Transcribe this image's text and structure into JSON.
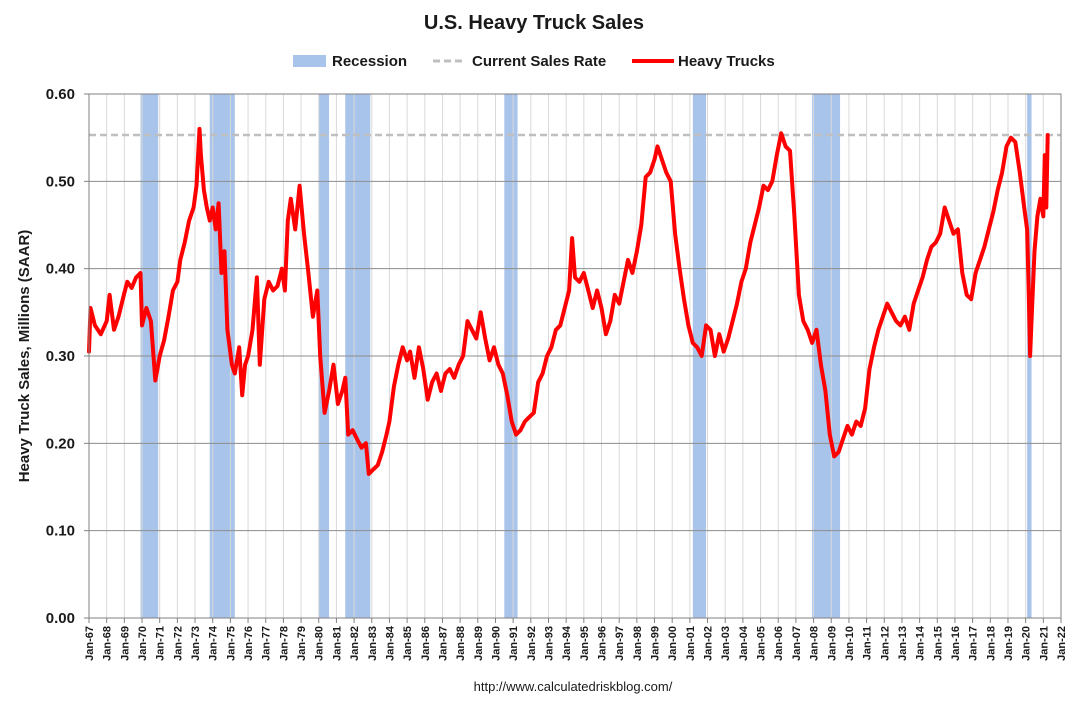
{
  "chart_data": {
    "type": "line",
    "title": "U.S. Heavy Truck Sales",
    "ylabel": "Heavy Truck Sales, Millions (SAAR)",
    "xlabel": "",
    "source": "http://www.calculatedriskblog.com/",
    "ylim": [
      0,
      0.6
    ],
    "yticks": [
      "0.00",
      "0.10",
      "0.20",
      "0.30",
      "0.40",
      "0.50",
      "0.60"
    ],
    "xlim": [
      "1967-01",
      "2022-01"
    ],
    "xticks": [
      "Jan-67",
      "Jan-68",
      "Jan-69",
      "Jan-70",
      "Jan-71",
      "Jan-72",
      "Jan-73",
      "Jan-74",
      "Jan-75",
      "Jan-76",
      "Jan-77",
      "Jan-78",
      "Jan-79",
      "Jan-80",
      "Jan-81",
      "Jan-82",
      "Jan-83",
      "Jan-84",
      "Jan-85",
      "Jan-86",
      "Jan-87",
      "Jan-88",
      "Jan-89",
      "Jan-90",
      "Jan-91",
      "Jan-92",
      "Jan-93",
      "Jan-94",
      "Jan-95",
      "Jan-96",
      "Jan-97",
      "Jan-98",
      "Jan-99",
      "Jan-00",
      "Jan-01",
      "Jan-02",
      "Jan-03",
      "Jan-04",
      "Jan-05",
      "Jan-06",
      "Jan-07",
      "Jan-08",
      "Jan-09",
      "Jan-10",
      "Jan-11",
      "Jan-12",
      "Jan-13",
      "Jan-14",
      "Jan-15",
      "Jan-16",
      "Jan-17",
      "Jan-18",
      "Jan-19",
      "Jan-20",
      "Jan-21",
      "Jan-22"
    ],
    "grid": true,
    "legend": {
      "position": "top",
      "entries": [
        {
          "name": "Recession",
          "color": "#a9c4eb"
        },
        {
          "name": "Current Sales Rate",
          "color": "#bfbfbf"
        },
        {
          "name": "Heavy Trucks",
          "color": "#ff0000"
        }
      ]
    },
    "current_sales_rate": 0.553,
    "recessions": [
      {
        "start": "1969-12",
        "end": "1970-11"
      },
      {
        "start": "1973-11",
        "end": "1975-03"
      },
      {
        "start": "1980-01",
        "end": "1980-07"
      },
      {
        "start": "1981-07",
        "end": "1982-11"
      },
      {
        "start": "1990-07",
        "end": "1991-03"
      },
      {
        "start": "2001-03",
        "end": "2001-11"
      },
      {
        "start": "2007-12",
        "end": "2009-06"
      },
      {
        "start": "2020-02",
        "end": "2020-04"
      }
    ],
    "series": [
      {
        "name": "Heavy Trucks",
        "color": "#ff0000",
        "points": [
          [
            "1967-01",
            0.305
          ],
          [
            "1967-02",
            0.355
          ],
          [
            "1967-05",
            0.335
          ],
          [
            "1967-09",
            0.325
          ],
          [
            "1968-01",
            0.34
          ],
          [
            "1968-03",
            0.37
          ],
          [
            "1968-06",
            0.33
          ],
          [
            "1968-09",
            0.345
          ],
          [
            "1969-01",
            0.372
          ],
          [
            "1969-03",
            0.385
          ],
          [
            "1969-06",
            0.378
          ],
          [
            "1969-09",
            0.39
          ],
          [
            "1969-12",
            0.395
          ],
          [
            "1970-01",
            0.335
          ],
          [
            "1970-04",
            0.355
          ],
          [
            "1970-07",
            0.34
          ],
          [
            "1970-10",
            0.272
          ],
          [
            "1971-01",
            0.3
          ],
          [
            "1971-04",
            0.318
          ],
          [
            "1971-07",
            0.345
          ],
          [
            "1971-10",
            0.375
          ],
          [
            "1972-01",
            0.385
          ],
          [
            "1972-03",
            0.41
          ],
          [
            "1972-06",
            0.43
          ],
          [
            "1972-09",
            0.455
          ],
          [
            "1972-12",
            0.47
          ],
          [
            "1973-02",
            0.495
          ],
          [
            "1973-04",
            0.56
          ],
          [
            "1973-05",
            0.53
          ],
          [
            "1973-07",
            0.49
          ],
          [
            "1973-09",
            0.47
          ],
          [
            "1973-11",
            0.455
          ],
          [
            "1974-01",
            0.47
          ],
          [
            "1974-03",
            0.445
          ],
          [
            "1974-05",
            0.475
          ],
          [
            "1974-07",
            0.395
          ],
          [
            "1974-09",
            0.42
          ],
          [
            "1974-11",
            0.33
          ],
          [
            "1975-02",
            0.29
          ],
          [
            "1975-04",
            0.28
          ],
          [
            "1975-07",
            0.31
          ],
          [
            "1975-09",
            0.255
          ],
          [
            "1975-11",
            0.29
          ],
          [
            "1976-01",
            0.3
          ],
          [
            "1976-04",
            0.33
          ],
          [
            "1976-07",
            0.39
          ],
          [
            "1976-09",
            0.29
          ],
          [
            "1976-12",
            0.365
          ],
          [
            "1977-03",
            0.385
          ],
          [
            "1977-06",
            0.375
          ],
          [
            "1977-09",
            0.38
          ],
          [
            "1977-12",
            0.4
          ],
          [
            "1978-02",
            0.375
          ],
          [
            "1978-04",
            0.455
          ],
          [
            "1978-06",
            0.48
          ],
          [
            "1978-09",
            0.445
          ],
          [
            "1978-12",
            0.495
          ],
          [
            "1979-03",
            0.44
          ],
          [
            "1979-06",
            0.395
          ],
          [
            "1979-09",
            0.345
          ],
          [
            "1979-12",
            0.375
          ],
          [
            "1980-02",
            0.3
          ],
          [
            "1980-05",
            0.235
          ],
          [
            "1980-08",
            0.26
          ],
          [
            "1980-11",
            0.29
          ],
          [
            "1981-02",
            0.245
          ],
          [
            "1981-05",
            0.26
          ],
          [
            "1981-07",
            0.275
          ],
          [
            "1981-09",
            0.21
          ],
          [
            "1981-12",
            0.215
          ],
          [
            "1982-03",
            0.205
          ],
          [
            "1982-06",
            0.195
          ],
          [
            "1982-09",
            0.2
          ],
          [
            "1982-11",
            0.165
          ],
          [
            "1983-02",
            0.17
          ],
          [
            "1983-05",
            0.175
          ],
          [
            "1983-08",
            0.19
          ],
          [
            "1983-11",
            0.21
          ],
          [
            "1984-01",
            0.225
          ],
          [
            "1984-04",
            0.265
          ],
          [
            "1984-07",
            0.29
          ],
          [
            "1984-10",
            0.31
          ],
          [
            "1985-01",
            0.295
          ],
          [
            "1985-03",
            0.305
          ],
          [
            "1985-06",
            0.275
          ],
          [
            "1985-09",
            0.31
          ],
          [
            "1985-12",
            0.285
          ],
          [
            "1986-03",
            0.25
          ],
          [
            "1986-06",
            0.27
          ],
          [
            "1986-09",
            0.28
          ],
          [
            "1986-12",
            0.26
          ],
          [
            "1987-03",
            0.28
          ],
          [
            "1987-06",
            0.285
          ],
          [
            "1987-09",
            0.275
          ],
          [
            "1987-12",
            0.29
          ],
          [
            "1988-03",
            0.3
          ],
          [
            "1988-06",
            0.34
          ],
          [
            "1988-09",
            0.33
          ],
          [
            "1988-12",
            0.32
          ],
          [
            "1989-03",
            0.35
          ],
          [
            "1989-06",
            0.32
          ],
          [
            "1989-09",
            0.295
          ],
          [
            "1989-12",
            0.31
          ],
          [
            "1990-03",
            0.29
          ],
          [
            "1990-06",
            0.28
          ],
          [
            "1990-09",
            0.255
          ],
          [
            "1990-12",
            0.225
          ],
          [
            "1991-03",
            0.21
          ],
          [
            "1991-06",
            0.215
          ],
          [
            "1991-09",
            0.225
          ],
          [
            "1991-12",
            0.23
          ],
          [
            "1992-03",
            0.235
          ],
          [
            "1992-06",
            0.27
          ],
          [
            "1992-09",
            0.28
          ],
          [
            "1992-12",
            0.3
          ],
          [
            "1993-03",
            0.31
          ],
          [
            "1993-06",
            0.33
          ],
          [
            "1993-09",
            0.335
          ],
          [
            "1993-12",
            0.355
          ],
          [
            "1994-03",
            0.375
          ],
          [
            "1994-05",
            0.435
          ],
          [
            "1994-07",
            0.39
          ],
          [
            "1994-10",
            0.385
          ],
          [
            "1995-01",
            0.395
          ],
          [
            "1995-04",
            0.375
          ],
          [
            "1995-07",
            0.355
          ],
          [
            "1995-10",
            0.375
          ],
          [
            "1996-01",
            0.355
          ],
          [
            "1996-04",
            0.325
          ],
          [
            "1996-07",
            0.34
          ],
          [
            "1996-10",
            0.37
          ],
          [
            "1997-01",
            0.36
          ],
          [
            "1997-04",
            0.385
          ],
          [
            "1997-07",
            0.41
          ],
          [
            "1997-10",
            0.395
          ],
          [
            "1998-01",
            0.42
          ],
          [
            "1998-04",
            0.45
          ],
          [
            "1998-07",
            0.505
          ],
          [
            "1998-10",
            0.51
          ],
          [
            "1999-01",
            0.525
          ],
          [
            "1999-03",
            0.54
          ],
          [
            "1999-06",
            0.525
          ],
          [
            "1999-09",
            0.51
          ],
          [
            "1999-12",
            0.5
          ],
          [
            "2000-03",
            0.44
          ],
          [
            "2000-06",
            0.4
          ],
          [
            "2000-09",
            0.365
          ],
          [
            "2000-12",
            0.335
          ],
          [
            "2001-03",
            0.315
          ],
          [
            "2001-06",
            0.31
          ],
          [
            "2001-09",
            0.3
          ],
          [
            "2001-12",
            0.335
          ],
          [
            "2002-03",
            0.33
          ],
          [
            "2002-06",
            0.3
          ],
          [
            "2002-09",
            0.325
          ],
          [
            "2002-12",
            0.305
          ],
          [
            "2003-03",
            0.32
          ],
          [
            "2003-06",
            0.34
          ],
          [
            "2003-09",
            0.36
          ],
          [
            "2003-12",
            0.385
          ],
          [
            "2004-03",
            0.4
          ],
          [
            "2004-06",
            0.43
          ],
          [
            "2004-09",
            0.45
          ],
          [
            "2004-12",
            0.47
          ],
          [
            "2005-03",
            0.495
          ],
          [
            "2005-06",
            0.49
          ],
          [
            "2005-09",
            0.5
          ],
          [
            "2005-12",
            0.53
          ],
          [
            "2006-03",
            0.555
          ],
          [
            "2006-06",
            0.54
          ],
          [
            "2006-09",
            0.535
          ],
          [
            "2006-12",
            0.46
          ],
          [
            "2007-03",
            0.37
          ],
          [
            "2007-06",
            0.34
          ],
          [
            "2007-09",
            0.33
          ],
          [
            "2007-12",
            0.315
          ],
          [
            "2008-03",
            0.33
          ],
          [
            "2008-06",
            0.29
          ],
          [
            "2008-09",
            0.26
          ],
          [
            "2008-12",
            0.21
          ],
          [
            "2009-03",
            0.185
          ],
          [
            "2009-06",
            0.19
          ],
          [
            "2009-09",
            0.205
          ],
          [
            "2009-12",
            0.22
          ],
          [
            "2010-03",
            0.21
          ],
          [
            "2010-06",
            0.225
          ],
          [
            "2010-09",
            0.22
          ],
          [
            "2010-12",
            0.24
          ],
          [
            "2011-03",
            0.285
          ],
          [
            "2011-06",
            0.31
          ],
          [
            "2011-09",
            0.33
          ],
          [
            "2011-12",
            0.345
          ],
          [
            "2012-03",
            0.36
          ],
          [
            "2012-06",
            0.35
          ],
          [
            "2012-09",
            0.34
          ],
          [
            "2012-12",
            0.335
          ],
          [
            "2013-03",
            0.345
          ],
          [
            "2013-06",
            0.33
          ],
          [
            "2013-09",
            0.36
          ],
          [
            "2013-12",
            0.375
          ],
          [
            "2014-03",
            0.39
          ],
          [
            "2014-06",
            0.41
          ],
          [
            "2014-09",
            0.425
          ],
          [
            "2014-12",
            0.43
          ],
          [
            "2015-03",
            0.44
          ],
          [
            "2015-06",
            0.47
          ],
          [
            "2015-09",
            0.455
          ],
          [
            "2015-12",
            0.44
          ],
          [
            "2016-03",
            0.445
          ],
          [
            "2016-06",
            0.395
          ],
          [
            "2016-09",
            0.37
          ],
          [
            "2016-12",
            0.365
          ],
          [
            "2017-03",
            0.395
          ],
          [
            "2017-06",
            0.41
          ],
          [
            "2017-09",
            0.425
          ],
          [
            "2017-12",
            0.445
          ],
          [
            "2018-03",
            0.465
          ],
          [
            "2018-06",
            0.49
          ],
          [
            "2018-09",
            0.51
          ],
          [
            "2018-12",
            0.54
          ],
          [
            "2019-03",
            0.55
          ],
          [
            "2019-06",
            0.545
          ],
          [
            "2019-09",
            0.51
          ],
          [
            "2019-12",
            0.47
          ],
          [
            "2020-02",
            0.445
          ],
          [
            "2020-03",
            0.38
          ],
          [
            "2020-04",
            0.3
          ],
          [
            "2020-05",
            0.34
          ],
          [
            "2020-07",
            0.42
          ],
          [
            "2020-09",
            0.46
          ],
          [
            "2020-11",
            0.48
          ],
          [
            "2021-01",
            0.46
          ],
          [
            "2021-02",
            0.53
          ],
          [
            "2021-03",
            0.47
          ],
          [
            "2021-04",
            0.553
          ]
        ]
      }
    ]
  }
}
